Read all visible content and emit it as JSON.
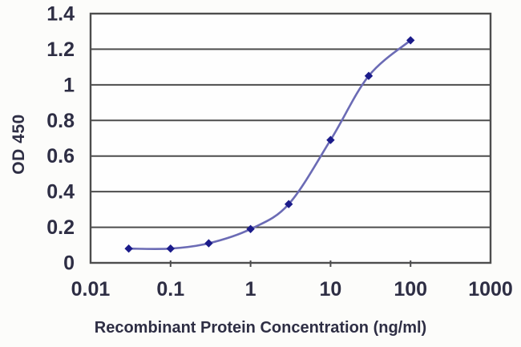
{
  "figure": {
    "kind": "elisa-standard-curve"
  },
  "chart_data": {
    "type": "line",
    "title": "",
    "xlabel": "Recombinant Protein Concentration (ng/ml)",
    "ylabel": "OD 450",
    "x_scale": "log",
    "xlim": [
      0.01,
      1000
    ],
    "ylim": [
      0,
      1.4
    ],
    "x": [
      0.03,
      0.1,
      0.3,
      1,
      3,
      10,
      30,
      100
    ],
    "y": [
      0.08,
      0.08,
      0.11,
      0.19,
      0.33,
      0.69,
      1.05,
      1.25
    ],
    "x_ticks": {
      "values": [
        0.01,
        0.1,
        1,
        10,
        100,
        1000
      ],
      "labels": [
        "0.01",
        "0.1",
        "1",
        "10",
        "100",
        "1000"
      ]
    },
    "y_ticks": {
      "values": [
        0,
        0.2,
        0.4,
        0.6,
        0.8,
        1,
        1.2,
        1.4
      ],
      "labels": [
        "0",
        "0.2",
        "0.4",
        "0.6",
        "0.8",
        "1",
        "1.2",
        "1.4"
      ]
    },
    "grid": "horizontal",
    "legend": "none",
    "marker": "diamond",
    "colors": {
      "line": "#6b6bb5",
      "marker": "#1b1b8a",
      "grid": "#4d4d4d",
      "text": "#2e2e44",
      "background": "#fcfcfa",
      "plot_background": "#fefefe"
    }
  }
}
